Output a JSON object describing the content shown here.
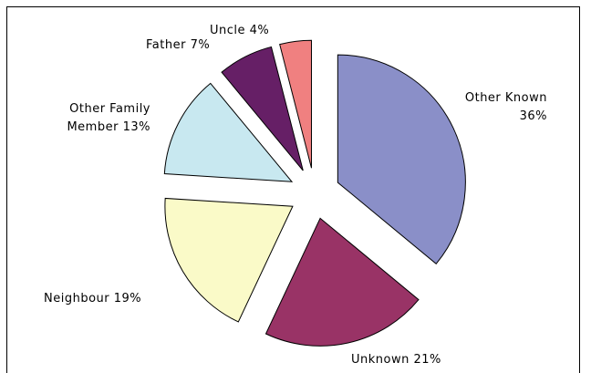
{
  "chart_data": {
    "type": "pie",
    "categories": [
      "Other Known",
      "Unknown",
      "Neighbour",
      "Other Family Member",
      "Father",
      "Uncle"
    ],
    "values": [
      36,
      21,
      19,
      13,
      7,
      4
    ],
    "value_labels": [
      "36%",
      "21%",
      "19%",
      "13%",
      "7%",
      "4%"
    ],
    "colors": [
      "#8a8fc8",
      "#993366",
      "#fafac8",
      "#c8e8f0",
      "#661f66",
      "#f08080"
    ]
  }
}
